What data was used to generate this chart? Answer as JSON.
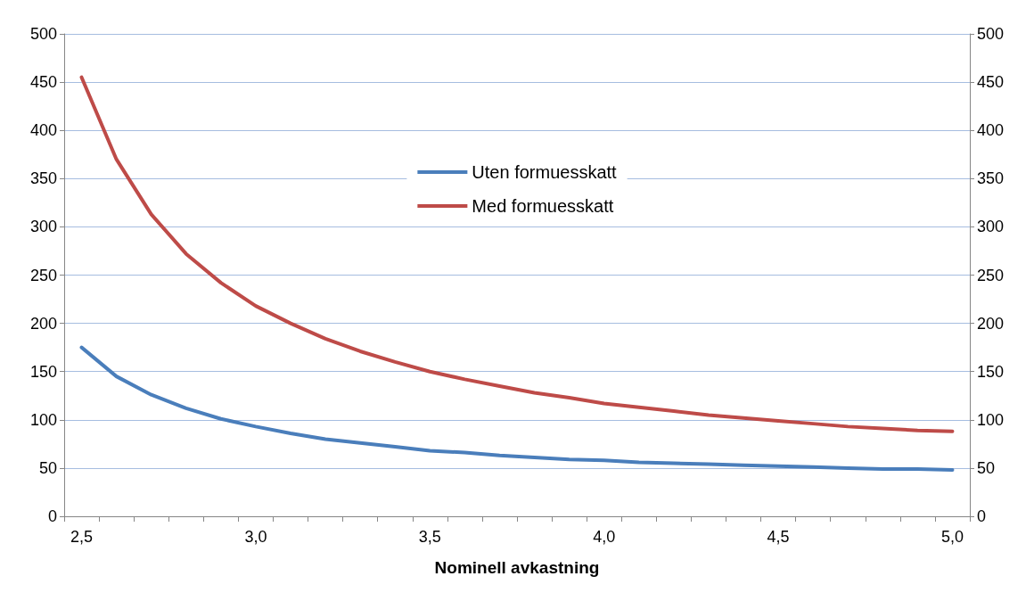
{
  "chart_data": {
    "type": "line",
    "xlabel": "Nominell avkastning",
    "categories": [
      "2,5",
      null,
      null,
      null,
      null,
      "3,0",
      null,
      null,
      null,
      null,
      "3,5",
      null,
      null,
      null,
      null,
      "4,0",
      null,
      null,
      null,
      null,
      "4,5",
      null,
      null,
      null,
      null,
      "5,0"
    ],
    "series": [
      {
        "name": "Uten formuesskatt",
        "color": "#4a7ebb",
        "values": [
          175,
          145,
          126,
          112,
          101,
          93,
          86,
          80,
          76,
          72,
          68,
          66,
          63,
          61,
          59,
          58,
          56,
          55,
          54,
          53,
          52,
          51,
          50,
          49,
          49,
          48
        ]
      },
      {
        "name": "Med formuesskatt",
        "color": "#be4b48",
        "values": [
          455,
          370,
          313,
          272,
          242,
          218,
          200,
          184,
          171,
          160,
          150,
          142,
          135,
          128,
          123,
          117,
          113,
          109,
          105,
          102,
          99,
          96,
          93,
          91,
          89,
          88
        ]
      }
    ],
    "ylim": [
      0,
      500
    ],
    "yticks": [
      0,
      50,
      100,
      150,
      200,
      250,
      300,
      350,
      400,
      450,
      500
    ],
    "y2lim": [
      0,
      500
    ],
    "y2ticks": [
      0,
      50,
      100,
      150,
      200,
      250,
      300,
      350,
      400,
      450,
      500
    ],
    "grid": "y",
    "legend": "top",
    "marker": "none",
    "line_style": "solid"
  }
}
